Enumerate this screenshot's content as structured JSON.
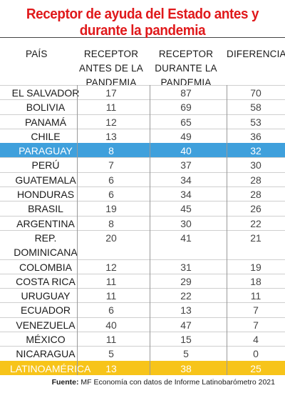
{
  "title": "Receptor de ayuda del Estado antes y durante la pandemia",
  "headers": {
    "pais": "PAÍS",
    "antes": [
      "RECEPTOR",
      "ANTES DE LA",
      "PANDEMIA"
    ],
    "durante": [
      "RECEPTOR",
      "DURANTE LA",
      "PANDEMIA"
    ],
    "diferencia": "DIFERENCIA"
  },
  "rows": [
    {
      "pais": "EL SALVADOR",
      "antes": "17",
      "durante": "87",
      "diferencia": "70"
    },
    {
      "pais": "BOLIVIA",
      "antes": "11",
      "durante": "69",
      "diferencia": "58"
    },
    {
      "pais": "PANAMÁ",
      "antes": "12",
      "durante": "65",
      "diferencia": "53"
    },
    {
      "pais": "CHILE",
      "antes": "13",
      "durante": "49",
      "diferencia": "36"
    },
    {
      "pais": "PARAGUAY",
      "antes": "8",
      "durante": "40",
      "diferencia": "32"
    },
    {
      "pais": "PERÚ",
      "antes": "7",
      "durante": "37",
      "diferencia": "30"
    },
    {
      "pais": "GUATEMALA",
      "antes": "6",
      "durante": "34",
      "diferencia": "28"
    },
    {
      "pais": "HONDURAS",
      "antes": "6",
      "durante": "34",
      "diferencia": "28"
    },
    {
      "pais": "BRASIL",
      "antes": "19",
      "durante": "45",
      "diferencia": "26"
    },
    {
      "pais": "ARGENTINA",
      "antes": "8",
      "durante": "30",
      "diferencia": "22"
    },
    {
      "pais": [
        "REP.",
        "DOMINICANA"
      ],
      "antes": "20",
      "durante": "41",
      "diferencia": "21"
    },
    {
      "pais": "COLOMBIA",
      "antes": "12",
      "durante": "31",
      "diferencia": "19"
    },
    {
      "pais": "COSTA RICA",
      "antes": "11",
      "durante": "29",
      "diferencia": "18"
    },
    {
      "pais": "URUGUAY",
      "antes": "11",
      "durante": "22",
      "diferencia": "11"
    },
    {
      "pais": "ECUADOR",
      "antes": "6",
      "durante": "13",
      "diferencia": "7"
    },
    {
      "pais": "VENEZUELA",
      "antes": "40",
      "durante": "47",
      "diferencia": "7"
    },
    {
      "pais": "MÉXICO",
      "antes": "11",
      "durante": "15",
      "diferencia": "4"
    },
    {
      "pais": "NICARAGUA",
      "antes": "5",
      "durante": "5",
      "diferencia": "0"
    },
    {
      "pais": "LATINOAMÉRICA",
      "antes": "13",
      "durante": "38",
      "diferencia": "25"
    }
  ],
  "highlight_colors": {
    "paraguay": "#3fa0dc",
    "latinoamerica": "#f7c41a",
    "title": "#e0191b"
  },
  "source": {
    "label": "Fuente:",
    "text": "MF Economía con datos de Informe Latinobarómetro 2021"
  }
}
